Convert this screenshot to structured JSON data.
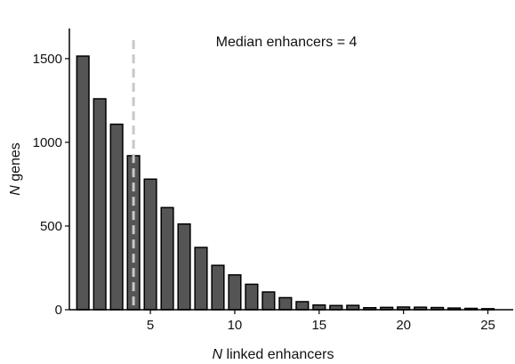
{
  "chart_data": {
    "type": "bar",
    "x": [
      1,
      2,
      3,
      4,
      5,
      6,
      7,
      8,
      9,
      10,
      11,
      12,
      13,
      14,
      15,
      16,
      17,
      18,
      19,
      20,
      21,
      22,
      23,
      24,
      25
    ],
    "values": [
      1515,
      1260,
      1108,
      920,
      780,
      610,
      512,
      372,
      265,
      208,
      152,
      106,
      72,
      48,
      28,
      25,
      26,
      12,
      14,
      16,
      15,
      13,
      10,
      8,
      6
    ],
    "xlabel": {
      "italic": "N",
      "rest": " linked enhancers"
    },
    "ylabel": {
      "italic": "N",
      "rest": " genes"
    },
    "xlim": [
      0.2,
      26.5
    ],
    "ylim": [
      0,
      1680
    ],
    "xticks": [
      5,
      10,
      15,
      20,
      25
    ],
    "yticks": [
      0,
      500,
      1000,
      1500
    ],
    "median": 4,
    "annotation": "Median enhancers = 4",
    "bar_color": "#555555",
    "bar_edge_color": "#000000",
    "median_line_color": "#c8c8c8"
  }
}
